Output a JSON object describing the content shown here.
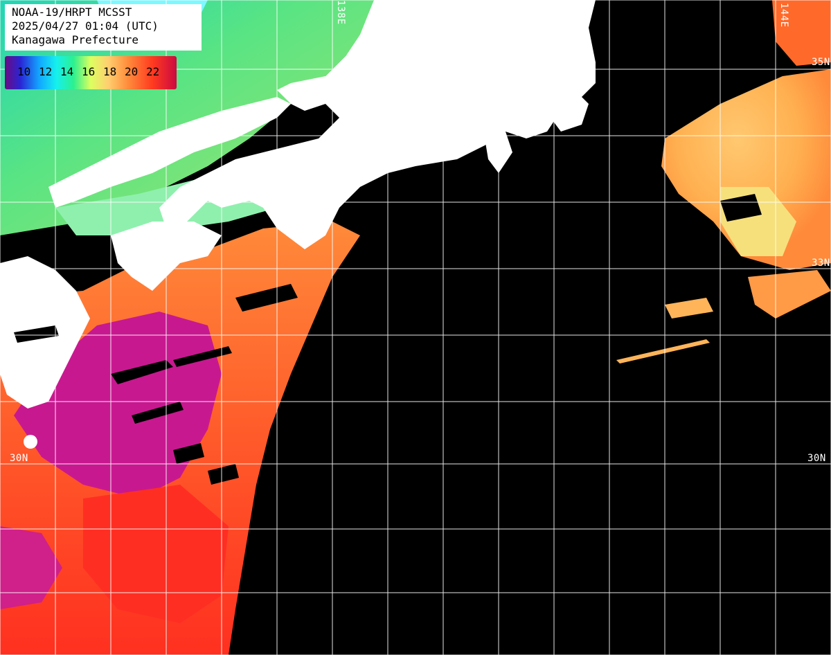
{
  "header": {
    "line1": "NOAA-19/HRPT MCSST",
    "line2": "2025/04/27 01:04 (UTC)",
    "line3": "Kanagawa Prefecture"
  },
  "color_scale": {
    "labels": [
      "10",
      "12",
      "14",
      "16",
      "18",
      "20",
      "22"
    ],
    "colors": [
      "#6a0a82",
      "#2a25d4",
      "#12a6ff",
      "#16f0ee",
      "#2cf08f",
      "#ddff60",
      "#ffd070",
      "#ff8a3a",
      "#ff3a20",
      "#cc0a40"
    ]
  },
  "grid_labels": {
    "lat_left": "30N",
    "lat_right": "30N",
    "lat_top_right": "35N",
    "lon_top_left": "138E",
    "lon_top_right": "144E",
    "lat_mid_right": "33N"
  },
  "colors": {
    "land": "#ffffff",
    "no_data": "#000000",
    "grid": "#ffffff"
  }
}
